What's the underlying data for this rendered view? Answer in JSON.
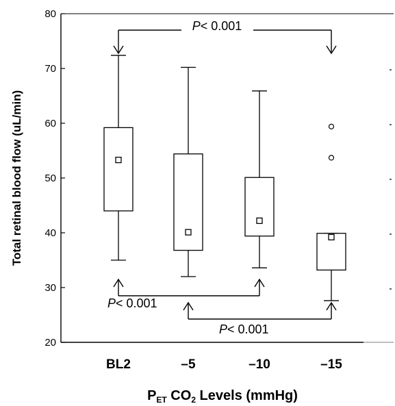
{
  "chart_data": {
    "type": "box",
    "ylabel": "Total retinal blood flow (uL/min)",
    "xlabel": {
      "main": "P",
      "sub1": "ET",
      "mid": " CO",
      "sub2": "2",
      "tail": " Levels (mmHg)"
    },
    "ylim": [
      20,
      80
    ],
    "yticks": [
      "20",
      "30",
      "40",
      "50",
      "60",
      "70",
      "80"
    ],
    "categories": [
      "BL2",
      "–5",
      "–10",
      "–15"
    ],
    "boxes": [
      {
        "whisker_low": 35.0,
        "q1": 44.0,
        "q3": 59.2,
        "whisker_high": 72.4,
        "mean": 53.3,
        "outliers": []
      },
      {
        "whisker_low": 32.0,
        "q1": 36.8,
        "q3": 54.4,
        "whisker_high": 70.2,
        "mean": 40.1,
        "outliers": []
      },
      {
        "whisker_low": 33.6,
        "q1": 39.4,
        "q3": 50.1,
        "whisker_high": 65.9,
        "mean": 42.2,
        "outliers": []
      },
      {
        "whisker_low": 27.6,
        "q1": 33.2,
        "q3": 39.9,
        "whisker_high": 39.9,
        "mean": 39.2,
        "outliers": [
          59.4,
          53.7
        ]
      }
    ],
    "comparisons": [
      {
        "from": 0,
        "to": 3,
        "position": "top",
        "label_italic": "P",
        "label_rest": "< 0.001"
      },
      {
        "from": 0,
        "to": 2,
        "position": "bottom",
        "label_italic": "P",
        "label_rest": "< 0.001"
      },
      {
        "from": 1,
        "to": 3,
        "position": "bottom",
        "label_italic": "P",
        "label_rest": "< 0.001"
      }
    ]
  }
}
